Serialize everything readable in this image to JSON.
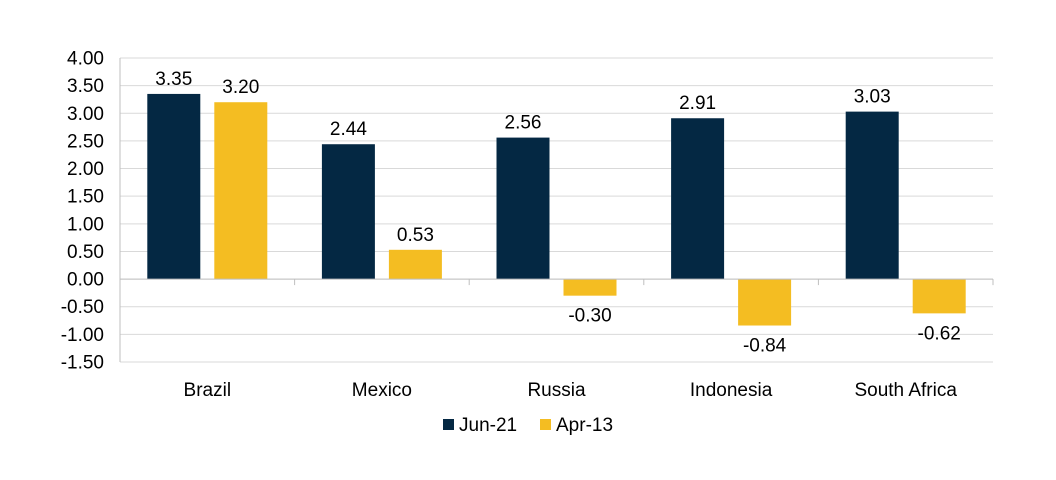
{
  "chart_data": {
    "type": "bar",
    "categories": [
      "Brazil",
      "Mexico",
      "Russia",
      "Indonesia",
      "South Africa"
    ],
    "series": [
      {
        "name": "Jun-21",
        "color": "#042843",
        "values": [
          3.35,
          2.44,
          2.56,
          2.91,
          3.03
        ]
      },
      {
        "name": "Apr-13",
        "color": "#F4BD22",
        "values": [
          3.2,
          0.53,
          -0.3,
          -0.84,
          -0.62
        ]
      }
    ],
    "ylim": [
      -1.5,
      4.0
    ],
    "yticks": [
      4.0,
      3.5,
      3.0,
      2.5,
      2.0,
      1.5,
      1.0,
      0.5,
      0.0,
      -0.5,
      -1.0,
      -1.5
    ],
    "ytick_labels": [
      "4.00",
      "3.50",
      "3.00",
      "2.50",
      "2.00",
      "1.50",
      "1.00",
      "0.50",
      "0.00",
      "-0.50",
      "-1.00",
      "-1.50"
    ],
    "data_labels": [
      [
        "3.35",
        "2.44",
        "2.56",
        "2.91",
        "3.03"
      ],
      [
        "3.20",
        "0.53",
        "-0.30",
        "-0.84",
        "-0.62"
      ]
    ],
    "grid": true,
    "legend_position": "bottom"
  }
}
